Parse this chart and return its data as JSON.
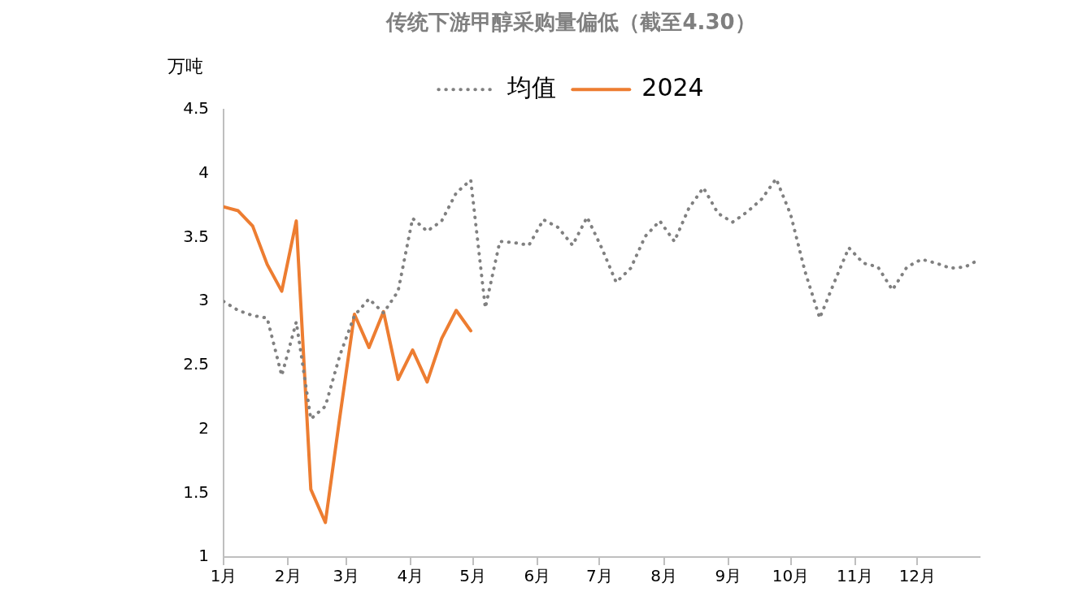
{
  "chart_data": {
    "type": "line",
    "title": "传统下游甲醇采购量偏低（截至4.30）",
    "ylabel": "万吨",
    "legend": "top",
    "marker": "none",
    "grid": false,
    "xlim": [
      "--01-01",
      "--12-31"
    ],
    "xticks": [
      {
        "value": "--01-01",
        "label": "1月"
      },
      {
        "value": "--02-01",
        "label": "2月"
      },
      {
        "value": "--03-01",
        "label": "3月"
      },
      {
        "value": "--04-01",
        "label": "4月"
      },
      {
        "value": "--05-01",
        "label": "5月"
      },
      {
        "value": "--06-01",
        "label": "6月"
      },
      {
        "value": "--07-01",
        "label": "7月"
      },
      {
        "value": "--08-01",
        "label": "8月"
      },
      {
        "value": "--09-01",
        "label": "9月"
      },
      {
        "value": "--10-01",
        "label": "10月"
      },
      {
        "value": "--11-01",
        "label": "11月"
      },
      {
        "value": "--12-01",
        "label": "12月"
      }
    ],
    "ylim": [
      1,
      4.5
    ],
    "yticks": [
      1,
      1.5,
      2,
      2.5,
      3,
      3.5,
      4,
      4.5
    ],
    "x": [
      "--01-01",
      "--01-08",
      "--01-15",
      "--01-22",
      "--01-29",
      "--02-05",
      "--02-12",
      "--02-19",
      "--02-26",
      "--03-05",
      "--03-12",
      "--03-19",
      "--03-26",
      "--04-02",
      "--04-09",
      "--04-16",
      "--04-23",
      "--04-30",
      "--05-07",
      "--05-14",
      "--05-21",
      "--05-28",
      "--06-04",
      "--06-11",
      "--06-18",
      "--06-25",
      "--07-02",
      "--07-09",
      "--07-16",
      "--07-23",
      "--07-30",
      "--08-06",
      "--08-13",
      "--08-20",
      "--08-27",
      "--09-03",
      "--09-10",
      "--09-17",
      "--09-24",
      "--10-01",
      "--10-08",
      "--10-15",
      "--10-22",
      "--10-29",
      "--11-05",
      "--11-12",
      "--11-19",
      "--11-26",
      "--12-03",
      "--12-10",
      "--12-17",
      "--12-24",
      "--12-31"
    ],
    "series": [
      {
        "name": "均值",
        "color": "#808080",
        "line_style": "dotted",
        "values": [
          3.0,
          2.93,
          2.89,
          2.87,
          2.42,
          2.84,
          2.08,
          2.18,
          2.58,
          2.89,
          3.02,
          2.91,
          3.08,
          3.65,
          3.55,
          3.63,
          3.85,
          3.95,
          2.95,
          3.47,
          3.46,
          3.44,
          3.64,
          3.58,
          3.44,
          3.66,
          3.42,
          3.15,
          3.26,
          3.51,
          3.63,
          3.47,
          3.73,
          3.89,
          3.69,
          3.62,
          3.7,
          3.8,
          3.96,
          3.68,
          3.23,
          2.87,
          3.15,
          3.42,
          3.3,
          3.27,
          3.09,
          3.27,
          3.33,
          3.3,
          3.26,
          3.27,
          3.33
        ]
      },
      {
        "name": "2024",
        "color": "#ed7d31",
        "line_style": "solid",
        "x": [
          "--01-01",
          "--01-08",
          "--01-15",
          "--01-22",
          "--01-29",
          "--02-05",
          "--02-12",
          "--02-19",
          "--02-26",
          "--03-05",
          "--03-12",
          "--03-19",
          "--03-26",
          "--04-02",
          "--04-09",
          "--04-16",
          "--04-23",
          "--04-30"
        ],
        "values": [
          3.74,
          3.71,
          3.59,
          3.29,
          3.08,
          3.63,
          1.53,
          1.27,
          2.1,
          2.9,
          2.64,
          2.92,
          2.39,
          2.62,
          2.37,
          2.71,
          2.93,
          2.77
        ]
      }
    ]
  }
}
